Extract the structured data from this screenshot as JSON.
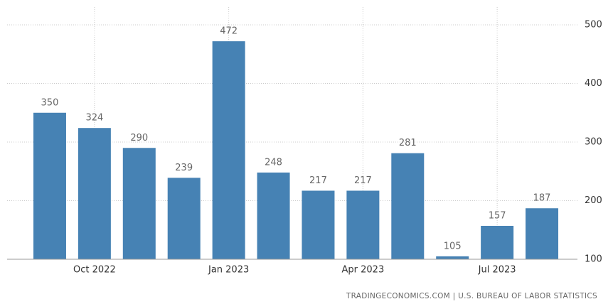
{
  "chart_data": {
    "type": "bar",
    "categories": [
      null,
      "Oct 2022",
      null,
      null,
      "Jan 2023",
      null,
      null,
      "Apr 2023",
      null,
      null,
      "Jul 2023",
      null
    ],
    "values": [
      350,
      324,
      290,
      239,
      472,
      248,
      217,
      217,
      281,
      105,
      157,
      187
    ],
    "color": "#4682b4",
    "ylim": [
      100,
      500
    ],
    "yticks": [
      100,
      200,
      300,
      400,
      500
    ],
    "grid": true,
    "source": "TRADINGECONOMICS.COM | U.S. BUREAU OF LABOR STATISTICS"
  }
}
